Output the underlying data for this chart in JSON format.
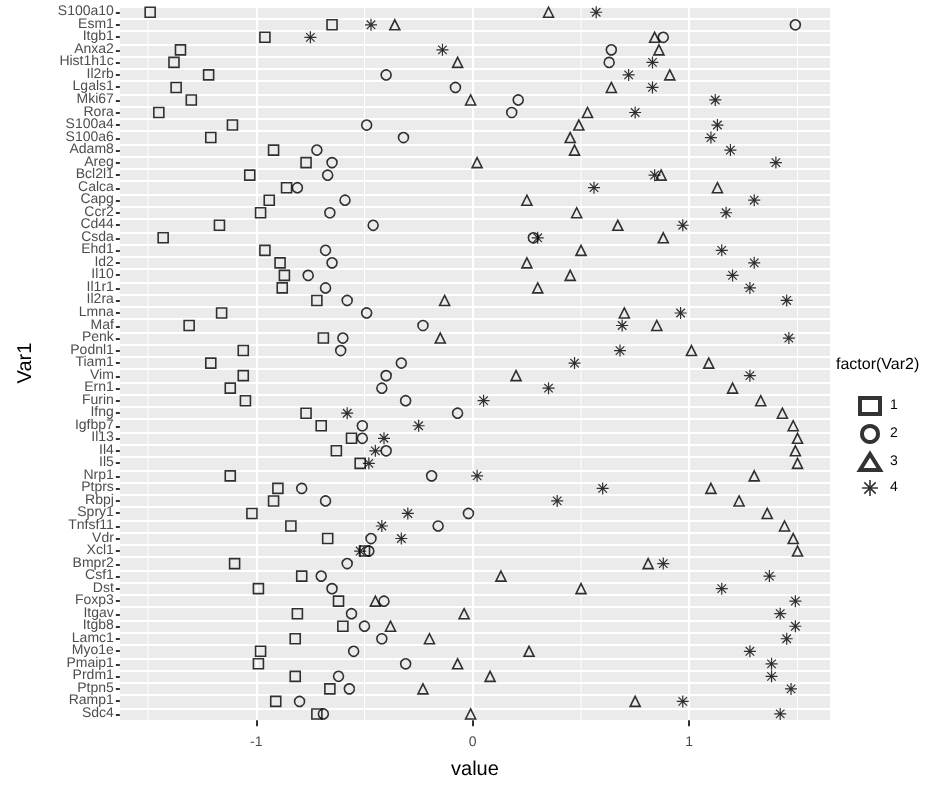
{
  "chart_data": {
    "type": "scatter",
    "orientation": "horizontal",
    "xlabel": "value",
    "ylabel": "Var1",
    "legend_title": "factor(Var2)",
    "legend": "right",
    "grid": true,
    "categories": [
      "S100a10",
      "Esm1",
      "Itgb1",
      "Anxa2",
      "Hist1h1c",
      "Il2rb",
      "Lgals1",
      "Mki67",
      "Rora",
      "S100a4",
      "S100a6",
      "Adam8",
      "Areg",
      "Bcl2l1",
      "Calca",
      "Capg",
      "Ccr2",
      "Cd44",
      "Csda",
      "Ehd1",
      "Id2",
      "Il10",
      "Il1r1",
      "Il2ra",
      "Lmna",
      "Maf",
      "Penk",
      "Podnl1",
      "Tiam1",
      "Vim",
      "Ern1",
      "Furin",
      "Ifng",
      "Igfbp7",
      "Il13",
      "Il4",
      "Il5",
      "Nrp1",
      "Ptprs",
      "Rbpj",
      "Spry1",
      "Tnfsf11",
      "Vdr",
      "Xcl1",
      "Bmpr2",
      "Csf1",
      "Dst",
      "Foxp3",
      "Itgav",
      "Itgb8",
      "Lamc1",
      "Myo1e",
      "Pmaip1",
      "Prdm1",
      "Ptpn5",
      "Ramp1",
      "Sdc4"
    ],
    "xlim": [
      -1.63,
      1.65
    ],
    "xticks": [
      {
        "value": -1.5,
        "label": null
      },
      -1,
      {
        "value": -0.5,
        "label": null
      },
      0,
      {
        "value": 0.5,
        "label": null
      },
      1,
      {
        "value": 1.5,
        "label": null
      }
    ],
    "series": [
      {
        "name": "1",
        "color": "#000000",
        "marker": "square",
        "values": [
          -1.49,
          -0.65,
          -0.96,
          -1.35,
          -1.38,
          -1.22,
          -1.37,
          -1.3,
          -1.45,
          -1.11,
          -1.21,
          -0.92,
          -0.77,
          -1.03,
          -0.86,
          -0.94,
          -0.98,
          -1.17,
          -1.43,
          -0.96,
          -0.89,
          -0.87,
          -0.88,
          -0.72,
          -1.16,
          -1.31,
          -0.69,
          -1.06,
          -1.21,
          -1.06,
          -1.12,
          -1.05,
          -0.77,
          -0.7,
          -0.56,
          -0.63,
          -0.52,
          -1.12,
          -0.9,
          -0.92,
          -1.02,
          -0.84,
          -0.67,
          -0.5,
          -1.1,
          -0.79,
          -0.99,
          -0.62,
          -0.81,
          -0.6,
          -0.82,
          -0.98,
          -0.99,
          -0.82,
          -0.66,
          -0.91,
          -0.72
        ]
      },
      {
        "name": "2",
        "color": "#000000",
        "marker": "circle",
        "values": [
          null,
          1.49,
          0.88,
          0.64,
          0.63,
          -0.4,
          -0.08,
          0.21,
          0.18,
          -0.49,
          -0.32,
          -0.72,
          -0.65,
          -0.67,
          -0.81,
          -0.59,
          -0.66,
          -0.46,
          0.28,
          -0.68,
          -0.65,
          -0.76,
          -0.68,
          -0.58,
          -0.49,
          -0.23,
          -0.6,
          -0.61,
          -0.33,
          -0.4,
          -0.42,
          -0.31,
          -0.07,
          -0.51,
          -0.51,
          -0.4,
          null,
          -0.19,
          -0.79,
          -0.68,
          -0.02,
          -0.16,
          -0.47,
          -0.48,
          -0.58,
          -0.7,
          -0.65,
          -0.41,
          -0.56,
          -0.5,
          -0.42,
          -0.55,
          -0.31,
          -0.62,
          -0.57,
          -0.8,
          -0.69
        ]
      },
      {
        "name": "3",
        "color": "#000000",
        "marker": "triangle",
        "values": [
          0.35,
          -0.36,
          0.84,
          0.86,
          -0.07,
          0.91,
          0.64,
          -0.01,
          0.53,
          0.49,
          0.45,
          0.47,
          0.02,
          0.87,
          1.13,
          0.25,
          0.48,
          0.67,
          0.88,
          0.5,
          0.25,
          0.45,
          0.3,
          -0.13,
          0.7,
          0.85,
          -0.15,
          1.01,
          1.09,
          0.2,
          1.2,
          1.33,
          1.43,
          1.48,
          1.5,
          1.49,
          1.5,
          1.3,
          1.1,
          1.23,
          1.36,
          1.44,
          1.48,
          1.5,
          0.81,
          0.13,
          0.5,
          -0.45,
          -0.04,
          -0.38,
          -0.2,
          0.26,
          -0.07,
          0.08,
          -0.23,
          0.75,
          -0.01
        ]
      },
      {
        "name": "4",
        "color": "#000000",
        "marker": "star",
        "values": [
          0.57,
          -0.47,
          -0.75,
          -0.14,
          0.83,
          0.72,
          0.83,
          1.12,
          0.75,
          1.13,
          1.1,
          1.19,
          1.4,
          0.84,
          0.56,
          1.3,
          1.17,
          0.97,
          0.3,
          1.15,
          1.3,
          1.2,
          1.28,
          1.45,
          0.96,
          0.69,
          1.46,
          0.68,
          0.47,
          1.28,
          0.35,
          0.05,
          -0.58,
          -0.25,
          -0.41,
          -0.45,
          -0.48,
          0.02,
          0.6,
          0.39,
          -0.3,
          -0.42,
          -0.33,
          -0.52,
          0.88,
          1.37,
          1.15,
          1.49,
          1.42,
          1.49,
          1.45,
          1.28,
          1.38,
          1.38,
          1.47,
          0.97,
          1.42
        ]
      }
    ]
  }
}
